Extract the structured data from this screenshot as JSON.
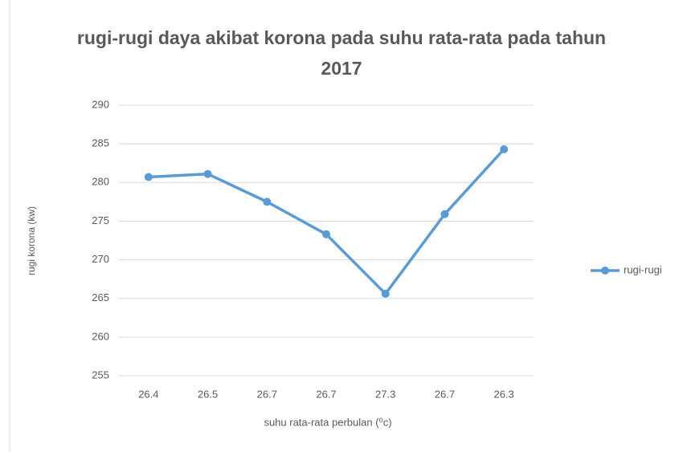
{
  "chart_data": {
    "type": "line",
    "title": "rugi-rugi daya akibat korona pada suhu rata-rata pada tahun 2017",
    "x_label": "suhu rata-rata perbulan (⁰c)",
    "y_label": "rugi korona (kw)",
    "categories": [
      "26.4",
      "26.5",
      "26.7",
      "26.7",
      "27.3",
      "26.7",
      "26.3"
    ],
    "series": [
      {
        "name": "rugi-rugi",
        "color": "#5b9bd5",
        "values": [
          280.7,
          281.1,
          277.5,
          273.3,
          265.6,
          275.9,
          284.3
        ]
      }
    ],
    "ylim": [
      255,
      290
    ],
    "yticks": [
      255,
      260,
      265,
      270,
      275,
      280,
      285,
      290
    ],
    "grid": true,
    "legend": "right"
  }
}
